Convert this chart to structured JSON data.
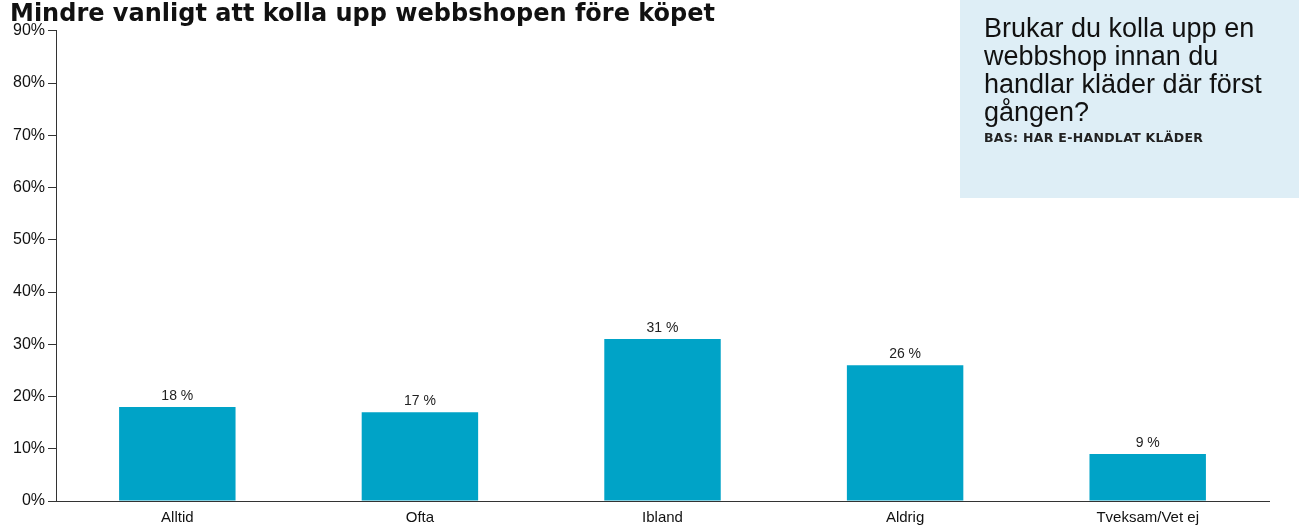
{
  "chart_data": {
    "type": "bar",
    "title": "Mindre vanligt att kolla upp webbshopen före köpet",
    "subtitle": "Brukar du kolla upp en webbshop innan du handlar kläder där först gången?",
    "annotations": [
      "BAS: HAR E-HANDLAT KLÄDER"
    ],
    "categories": [
      "Alltid",
      "Ofta",
      "Ibland",
      "Aldrig",
      "Tveksam/Vet ej"
    ],
    "values": [
      18,
      17,
      31,
      26,
      9
    ],
    "value_labels": [
      "18 %",
      "17 %",
      "31 %",
      "26 %",
      "9 %"
    ],
    "color": "#00a3c7",
    "ylim": [
      0,
      90
    ],
    "yticks": [
      {
        "value": 0,
        "label": "0%"
      },
      {
        "value": 10,
        "label": "10%"
      },
      {
        "value": 20,
        "label": "20%"
      },
      {
        "value": 30,
        "label": "30%"
      },
      {
        "value": 40,
        "label": "40%"
      },
      {
        "value": 50,
        "label": "50%"
      },
      {
        "value": 60,
        "label": "60%"
      },
      {
        "value": 70,
        "label": "70%"
      },
      {
        "value": 80,
        "label": "80%"
      },
      {
        "value": 90,
        "label": "90%"
      }
    ],
    "grid": false,
    "legend": false
  }
}
